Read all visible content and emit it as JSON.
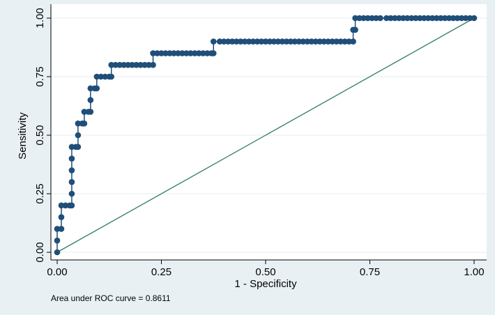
{
  "chart_data": {
    "type": "line",
    "xlabel": "1 - Specificity",
    "ylabel": "Sensitivity",
    "xlim": [
      0,
      1
    ],
    "ylim": [
      0,
      1
    ],
    "x_ticks": [
      "0.00",
      "0.25",
      "0.50",
      "0.75",
      "1.00"
    ],
    "y_ticks": [
      "0.00",
      "0.25",
      "0.50",
      "0.75",
      "1.00"
    ],
    "grid": true,
    "note": "Area under ROC curve = 0.8611",
    "colors": {
      "curve": "#1f4e79",
      "reference": "#2e7d5b",
      "grid": "#e6eef2",
      "plot_bg": "#ffffff"
    },
    "series": [
      {
        "values": [
          [
            0.0,
            0.0
          ],
          [
            0.0,
            0.05
          ],
          [
            0.0,
            0.1
          ],
          [
            0.01,
            0.1
          ],
          [
            0.01,
            0.15
          ],
          [
            0.01,
            0.2
          ],
          [
            0.02,
            0.2
          ],
          [
            0.03,
            0.2
          ],
          [
            0.035,
            0.2
          ],
          [
            0.035,
            0.25
          ],
          [
            0.035,
            0.3
          ],
          [
            0.035,
            0.35
          ],
          [
            0.035,
            0.4
          ],
          [
            0.035,
            0.45
          ],
          [
            0.045,
            0.45
          ],
          [
            0.05,
            0.45
          ],
          [
            0.05,
            0.5
          ],
          [
            0.05,
            0.55
          ],
          [
            0.06,
            0.55
          ],
          [
            0.065,
            0.55
          ],
          [
            0.065,
            0.6
          ],
          [
            0.075,
            0.6
          ],
          [
            0.08,
            0.6
          ],
          [
            0.08,
            0.65
          ],
          [
            0.08,
            0.7
          ],
          [
            0.09,
            0.7
          ],
          [
            0.095,
            0.7
          ],
          [
            0.095,
            0.75
          ],
          [
            0.105,
            0.75
          ],
          [
            0.115,
            0.75
          ],
          [
            0.125,
            0.75
          ],
          [
            0.13,
            0.75
          ],
          [
            0.13,
            0.8
          ],
          [
            0.14,
            0.8
          ],
          [
            0.15,
            0.8
          ],
          [
            0.16,
            0.8
          ],
          [
            0.17,
            0.8
          ],
          [
            0.18,
            0.8
          ],
          [
            0.19,
            0.8
          ],
          [
            0.2,
            0.8
          ],
          [
            0.21,
            0.8
          ],
          [
            0.22,
            0.8
          ],
          [
            0.23,
            0.8
          ],
          [
            0.23,
            0.85
          ],
          [
            0.24,
            0.85
          ],
          [
            0.25,
            0.85
          ],
          [
            0.26,
            0.85
          ],
          [
            0.27,
            0.85
          ],
          [
            0.28,
            0.85
          ],
          [
            0.29,
            0.85
          ],
          [
            0.3,
            0.85
          ],
          [
            0.31,
            0.85
          ],
          [
            0.32,
            0.85
          ],
          [
            0.33,
            0.85
          ],
          [
            0.34,
            0.85
          ],
          [
            0.35,
            0.85
          ],
          [
            0.36,
            0.85
          ],
          [
            0.37,
            0.85
          ],
          [
            0.375,
            0.85
          ],
          [
            0.375,
            0.9
          ],
          [
            0.39,
            0.9
          ],
          [
            0.4,
            0.9
          ],
          [
            0.41,
            0.9
          ],
          [
            0.42,
            0.9
          ],
          [
            0.43,
            0.9
          ],
          [
            0.44,
            0.9
          ],
          [
            0.45,
            0.9
          ],
          [
            0.46,
            0.9
          ],
          [
            0.47,
            0.9
          ],
          [
            0.48,
            0.9
          ],
          [
            0.49,
            0.9
          ],
          [
            0.5,
            0.9
          ],
          [
            0.51,
            0.9
          ],
          [
            0.52,
            0.9
          ],
          [
            0.53,
            0.9
          ],
          [
            0.54,
            0.9
          ],
          [
            0.55,
            0.9
          ],
          [
            0.56,
            0.9
          ],
          [
            0.57,
            0.9
          ],
          [
            0.58,
            0.9
          ],
          [
            0.59,
            0.9
          ],
          [
            0.6,
            0.9
          ],
          [
            0.61,
            0.9
          ],
          [
            0.62,
            0.9
          ],
          [
            0.63,
            0.9
          ],
          [
            0.64,
            0.9
          ],
          [
            0.65,
            0.9
          ],
          [
            0.66,
            0.9
          ],
          [
            0.67,
            0.9
          ],
          [
            0.68,
            0.9
          ],
          [
            0.69,
            0.9
          ],
          [
            0.7,
            0.9
          ],
          [
            0.71,
            0.9
          ],
          [
            0.71,
            0.95
          ],
          [
            0.715,
            0.95
          ],
          [
            0.715,
            1.0
          ],
          [
            0.725,
            1.0
          ],
          [
            0.735,
            1.0
          ],
          [
            0.745,
            1.0
          ],
          [
            0.755,
            1.0
          ],
          [
            0.765,
            1.0
          ],
          [
            0.775,
            1.0
          ],
          [
            0.79,
            1.0
          ],
          [
            0.8,
            1.0
          ],
          [
            0.81,
            1.0
          ],
          [
            0.82,
            1.0
          ],
          [
            0.83,
            1.0
          ],
          [
            0.84,
            1.0
          ],
          [
            0.85,
            1.0
          ],
          [
            0.86,
            1.0
          ],
          [
            0.87,
            1.0
          ],
          [
            0.88,
            1.0
          ],
          [
            0.89,
            1.0
          ],
          [
            0.9,
            1.0
          ],
          [
            0.91,
            1.0
          ],
          [
            0.92,
            1.0
          ],
          [
            0.93,
            1.0
          ],
          [
            0.94,
            1.0
          ],
          [
            0.95,
            1.0
          ],
          [
            0.96,
            1.0
          ],
          [
            0.97,
            1.0
          ],
          [
            0.98,
            1.0
          ],
          [
            0.99,
            1.0
          ],
          [
            1.0,
            1.0
          ]
        ]
      },
      {
        "role": "reference",
        "values": [
          [
            0,
            0
          ],
          [
            1,
            1
          ]
        ]
      }
    ]
  }
}
